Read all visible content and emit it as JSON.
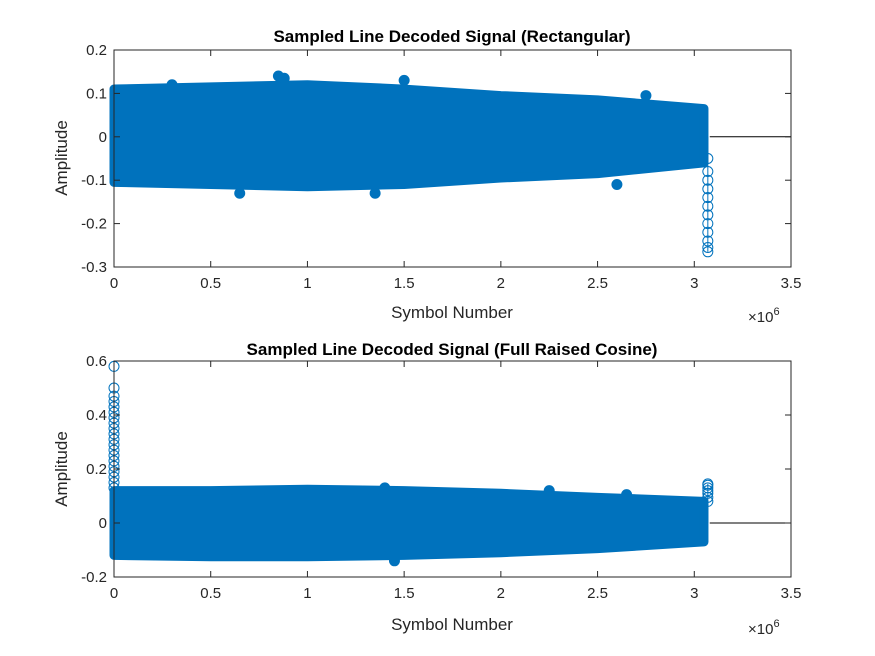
{
  "colors": {
    "series": "#0072BD",
    "axis": "#262626",
    "zero_line": "#000000"
  },
  "chart_data": [
    {
      "type": "scatter",
      "title": "Sampled Line Decoded Signal (Rectangular)",
      "xlabel": "Symbol Number",
      "ylabel": "Amplitude",
      "xlim": [
        0,
        3500000
      ],
      "ylim": [
        -0.3,
        0.2
      ],
      "xticks": [
        0,
        500000,
        1000000,
        1500000,
        2000000,
        2500000,
        3000000,
        3500000
      ],
      "xtick_labels": [
        "0",
        "0.5",
        "1",
        "1.5",
        "2",
        "2.5",
        "3",
        "3.5"
      ],
      "yticks": [
        -0.3,
        -0.2,
        -0.1,
        0,
        0.1,
        0.2
      ],
      "ytick_labels": [
        "-0.3",
        "-0.2",
        "-0.1",
        "0",
        "0.1",
        "0.2"
      ],
      "x_exponent_base": "×10",
      "x_exponent_power": "6",
      "signal_end": 3080000,
      "zero_line_end": 3500000,
      "band": [
        {
          "x": 0,
          "min": -0.105,
          "max": 0.11
        },
        {
          "x": 500000,
          "min": -0.11,
          "max": 0.115
        },
        {
          "x": 1000000,
          "min": -0.115,
          "max": 0.12
        },
        {
          "x": 1500000,
          "min": -0.11,
          "max": 0.11
        },
        {
          "x": 2000000,
          "min": -0.095,
          "max": 0.095
        },
        {
          "x": 2500000,
          "min": -0.085,
          "max": 0.085
        },
        {
          "x": 3050000,
          "min": -0.06,
          "max": 0.065
        }
      ],
      "outliers": [
        {
          "x": 300000,
          "y": 0.12
        },
        {
          "x": 850000,
          "y": 0.14
        },
        {
          "x": 880000,
          "y": 0.135
        },
        {
          "x": 1500000,
          "y": 0.13
        },
        {
          "x": 650000,
          "y": -0.13
        },
        {
          "x": 1350000,
          "y": -0.13
        },
        {
          "x": 2600000,
          "y": -0.11
        },
        {
          "x": 2750000,
          "y": 0.095
        }
      ],
      "tail_spike": {
        "x": 3070000,
        "values": [
          -0.05,
          -0.08,
          -0.1,
          -0.12,
          -0.14,
          -0.16,
          -0.18,
          -0.2,
          -0.22,
          -0.24,
          -0.255,
          -0.265
        ]
      }
    },
    {
      "type": "scatter",
      "title": "Sampled Line Decoded Signal (Full Raised Cosine)",
      "xlabel": "Symbol Number",
      "ylabel": "Amplitude",
      "xlim": [
        0,
        3500000
      ],
      "ylim": [
        -0.2,
        0.6
      ],
      "xticks": [
        0,
        500000,
        1000000,
        1500000,
        2000000,
        2500000,
        3000000,
        3500000
      ],
      "xtick_labels": [
        "0",
        "0.5",
        "1",
        "1.5",
        "2",
        "2.5",
        "3",
        "3.5"
      ],
      "yticks": [
        -0.2,
        0,
        0.2,
        0.4,
        0.6
      ],
      "ytick_labels": [
        "-0.2",
        "0",
        "0.2",
        "0.4",
        "0.6"
      ],
      "x_exponent_base": "×10",
      "x_exponent_power": "6",
      "signal_end": 3080000,
      "zero_line_end": 3500000,
      "band": [
        {
          "x": 0,
          "min": -0.12,
          "max": 0.12
        },
        {
          "x": 500000,
          "min": -0.125,
          "max": 0.12
        },
        {
          "x": 1000000,
          "min": -0.125,
          "max": 0.125
        },
        {
          "x": 1500000,
          "min": -0.12,
          "max": 0.12
        },
        {
          "x": 2000000,
          "min": -0.11,
          "max": 0.11
        },
        {
          "x": 2500000,
          "min": -0.095,
          "max": 0.095
        },
        {
          "x": 3050000,
          "min": -0.07,
          "max": 0.08
        }
      ],
      "outliers": [
        {
          "x": 1400000,
          "y": 0.13
        },
        {
          "x": 2250000,
          "y": 0.12
        },
        {
          "x": 2650000,
          "y": 0.105
        },
        {
          "x": 1450000,
          "y": -0.14
        }
      ],
      "head_spike": {
        "x": 0,
        "values": [
          0.58,
          0.5,
          0.47,
          0.45,
          0.43,
          0.41,
          0.39,
          0.37,
          0.35,
          0.33,
          0.31,
          0.29,
          0.27,
          0.25,
          0.23,
          0.21,
          0.19,
          0.17,
          0.15,
          0.13
        ]
      },
      "tail_spike": {
        "x": 3070000,
        "values": [
          0.08,
          0.095,
          0.11,
          0.12,
          0.13,
          0.14,
          0.145
        ]
      }
    }
  ]
}
